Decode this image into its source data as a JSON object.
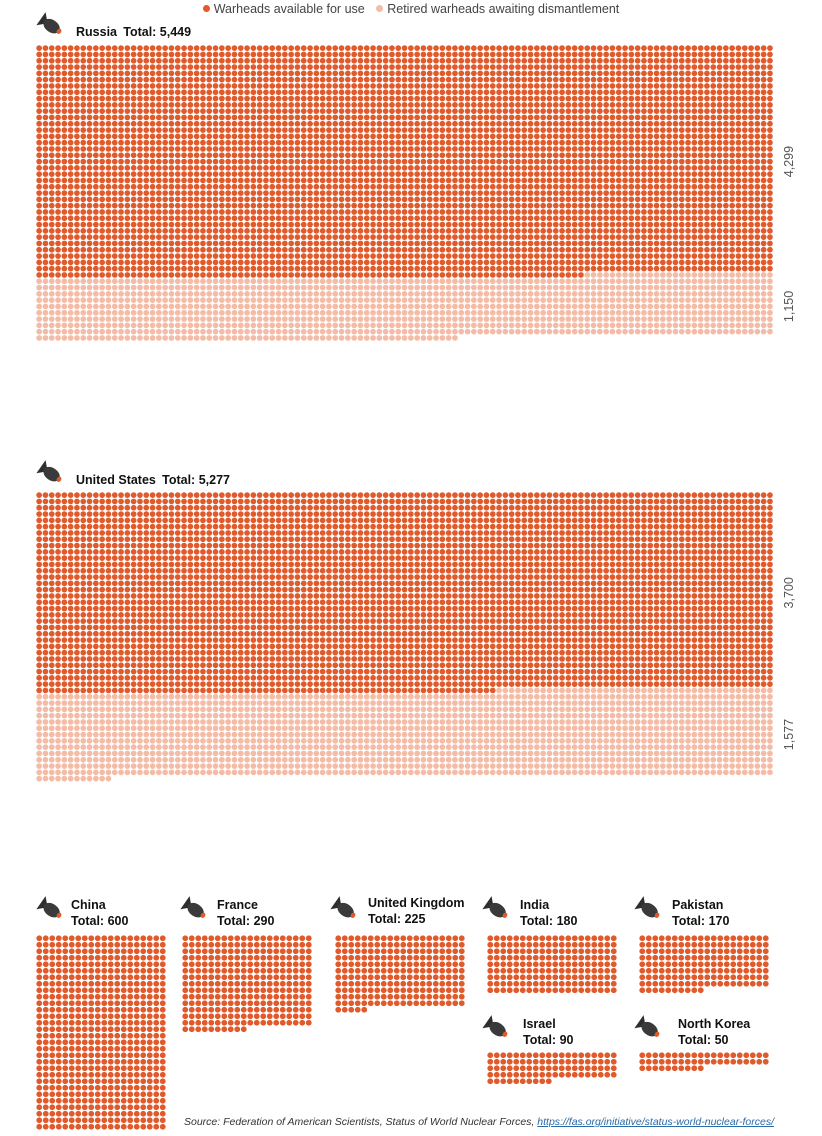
{
  "legend": {
    "active_label": "Warheads available for use",
    "retired_label": "Retired warheads awaiting dismantlement"
  },
  "colors": {
    "active": "#e05a2b",
    "retired": "#f4bca6",
    "bomb_body": "#3a3a3a",
    "bomb_fins": "#2e2e2e",
    "bomb_flame": "#e05a2b"
  },
  "icon": "bomb-icon",
  "source": {
    "prefix": "Source: Federation of American Scientists, Status of World Nuclear Forces, ",
    "link": "https://fas.org/initiative/status-world-nuclear-forces/"
  },
  "chart_data": {
    "type": "waffle",
    "unit": "1 dot = 1 warhead",
    "countries": [
      {
        "name": "Russia",
        "total_label": "Total: 5,449",
        "total": 5449,
        "active": 4299,
        "retired": 1150,
        "active_label": "4,299",
        "retired_label": "1,150"
      },
      {
        "name": "United States",
        "total_label": "Total: 5,277",
        "total": 5277,
        "active": 3700,
        "retired": 1577,
        "active_label": "3,700",
        "retired_label": "1,577"
      },
      {
        "name": "China",
        "total_label": "Total: 600",
        "total": 600,
        "active": 600,
        "retired": 0
      },
      {
        "name": "France",
        "total_label": "Total: 290",
        "total": 290,
        "active": 290,
        "retired": 0
      },
      {
        "name": "United Kingdom",
        "total_label": "Total: 225",
        "total": 225,
        "active": 225,
        "retired": 0
      },
      {
        "name": "India",
        "total_label": "Total: 180",
        "total": 180,
        "active": 180,
        "retired": 0
      },
      {
        "name": "Pakistan",
        "total_label": "Total: 170",
        "total": 170,
        "active": 170,
        "retired": 0
      },
      {
        "name": "Israel",
        "total_label": "Total: 90",
        "total": 90,
        "active": 90,
        "retired": 0
      },
      {
        "name": "North Korea",
        "total_label": "Total: 50",
        "total": 50,
        "active": 50,
        "retired": 0
      }
    ]
  }
}
